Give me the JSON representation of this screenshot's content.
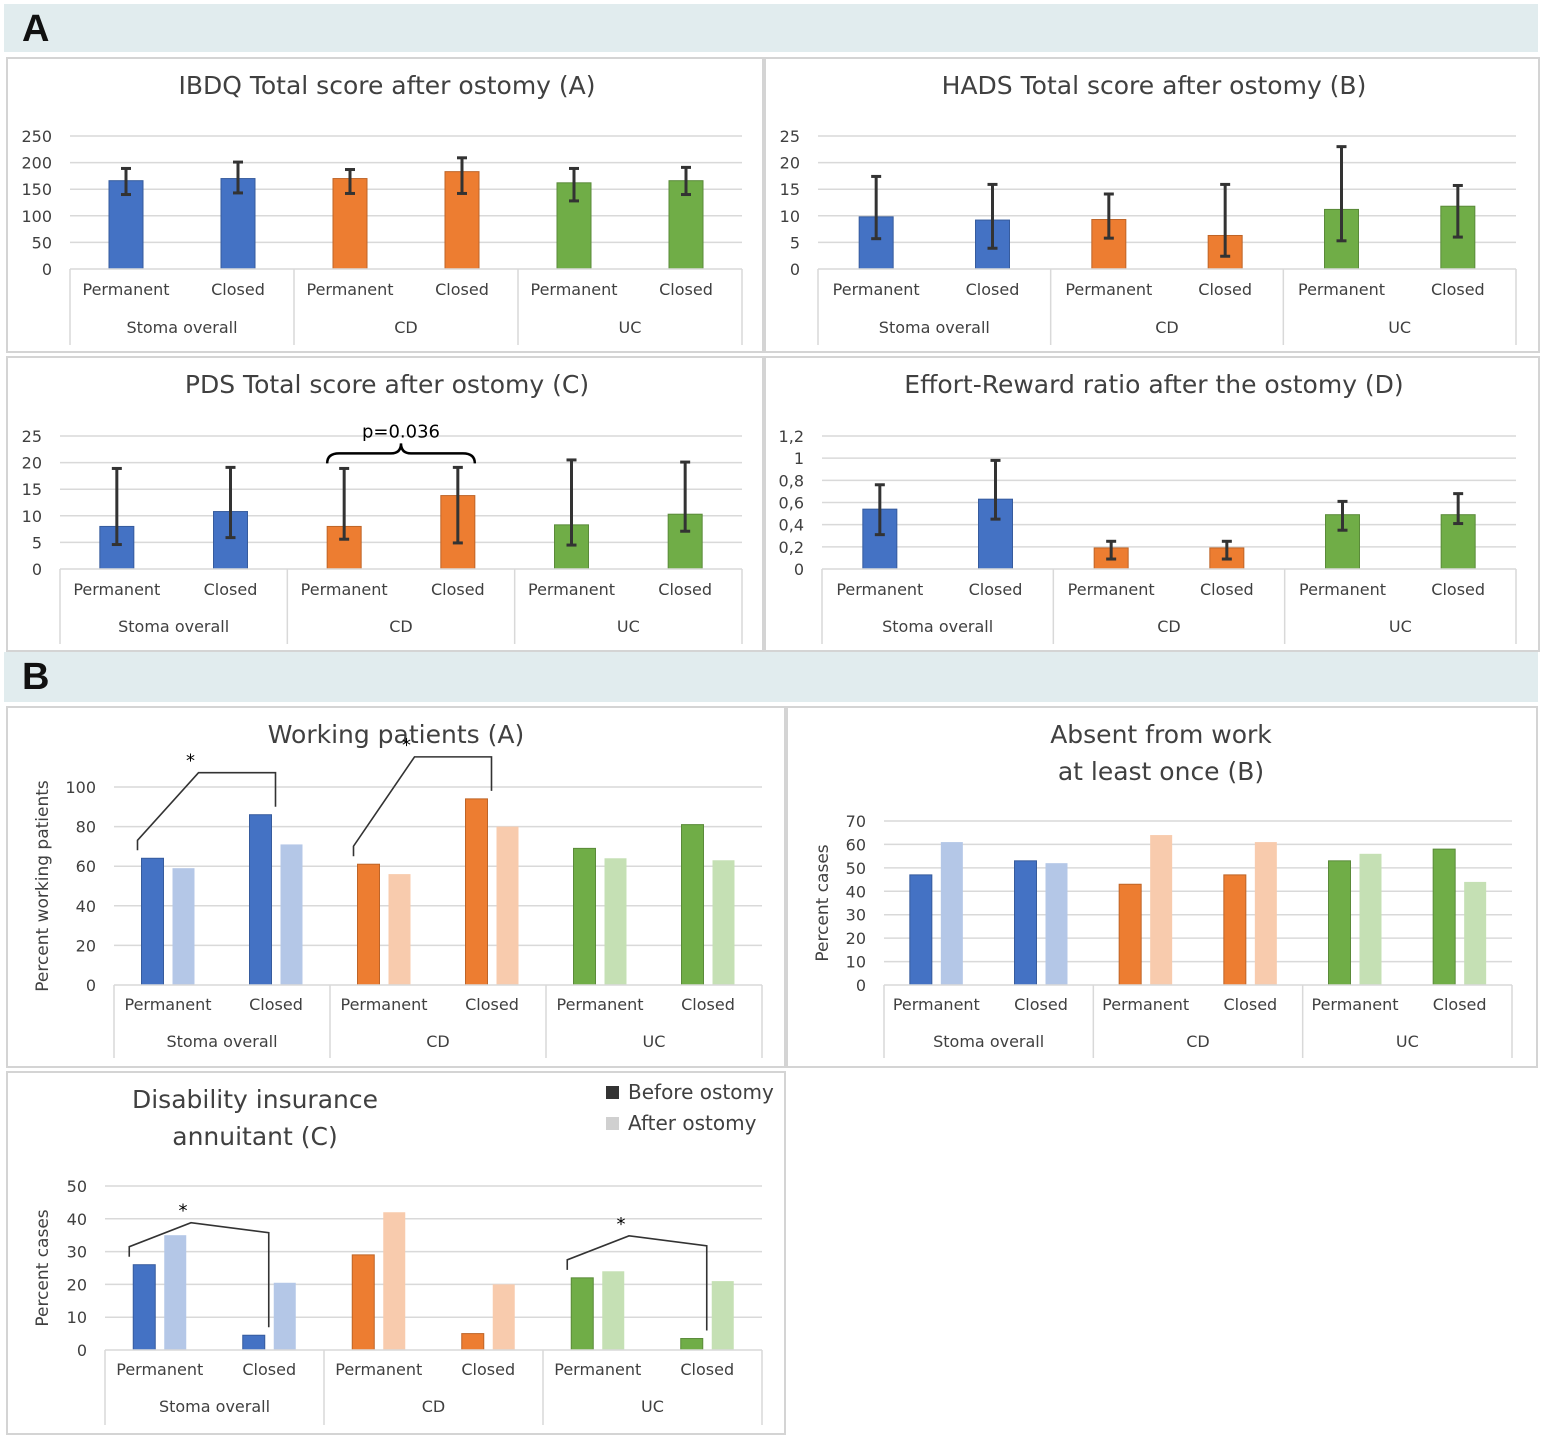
{
  "sections": [
    {
      "letter": "A"
    },
    {
      "letter": "B"
    }
  ],
  "legend": {
    "before": "Before ostomy",
    "after": "After ostomy",
    "before_color": "#333333",
    "after_color": "#d0d0d0"
  },
  "colors": {
    "blue": "#4472c4",
    "blue_light": "#b4c7e7",
    "orange": "#ed7d31",
    "orange_light": "#f8cbad",
    "green": "#70ad47",
    "green_light": "#c5e0b4",
    "error_bar": "#333333",
    "grid": "#d9d9d9"
  },
  "chart_data": [
    {
      "id": "ibdq",
      "type": "bar",
      "title": "IBDQ Total score after ostomy (A)",
      "categories": [
        "Permanent",
        "Closed",
        "Permanent",
        "Closed",
        "Permanent",
        "Closed"
      ],
      "groups": [
        "Stoma overall",
        "CD",
        "UC"
      ],
      "values": [
        166,
        170,
        170,
        183,
        162,
        166
      ],
      "error_low": [
        140,
        143,
        142,
        142,
        128,
        140
      ],
      "error_high": [
        189,
        201,
        187,
        209,
        189,
        191
      ],
      "colors": [
        "blue",
        "blue",
        "orange",
        "orange",
        "green",
        "green"
      ],
      "ylim": [
        0,
        250
      ],
      "yticks": [
        "0",
        "50",
        "100",
        "150",
        "200",
        "250"
      ],
      "grid": true
    },
    {
      "id": "hads",
      "type": "bar",
      "title": "HADS Total score after ostomy (B)",
      "categories": [
        "Permanent",
        "Closed",
        "Permanent",
        "Closed",
        "Permanent",
        "Closed"
      ],
      "groups": [
        "Stoma overall",
        "CD",
        "UC"
      ],
      "values": [
        9.8,
        9.2,
        9.3,
        6.3,
        11.2,
        11.8
      ],
      "error_low": [
        5.7,
        3.9,
        5.8,
        2.4,
        5.3,
        6.0
      ],
      "error_high": [
        17.4,
        15.9,
        14.1,
        15.9,
        23.0,
        15.7
      ],
      "colors": [
        "blue",
        "blue",
        "orange",
        "orange",
        "green",
        "green"
      ],
      "ylim": [
        0,
        25
      ],
      "yticks": [
        "0",
        "5",
        "10",
        "15",
        "20",
        "25"
      ],
      "grid": true
    },
    {
      "id": "pds",
      "type": "bar",
      "title": "PDS Total score after ostomy (C)",
      "categories": [
        "Permanent",
        "Closed",
        "Permanent",
        "Closed",
        "Permanent",
        "Closed"
      ],
      "groups": [
        "Stoma overall",
        "CD",
        "UC"
      ],
      "values": [
        8.0,
        10.8,
        8.0,
        13.8,
        8.3,
        10.3
      ],
      "error_low": [
        4.6,
        5.9,
        5.6,
        4.9,
        4.5,
        7.1
      ],
      "error_high": [
        18.9,
        19.1,
        18.9,
        19.1,
        20.5,
        20.1
      ],
      "colors": [
        "blue",
        "blue",
        "orange",
        "orange",
        "green",
        "green"
      ],
      "ylim": [
        0,
        25
      ],
      "yticks": [
        "0",
        "5",
        "10",
        "15",
        "20",
        "25"
      ],
      "grid": true,
      "annotations": [
        {
          "type": "brace",
          "from": 2,
          "to": 3,
          "text": "p=0.036"
        }
      ]
    },
    {
      "id": "eri",
      "type": "bar",
      "title": "Effort-Reward ratio after the ostomy (D)",
      "categories": [
        "Permanent",
        "Closed",
        "Permanent",
        "Closed",
        "Permanent",
        "Closed"
      ],
      "groups": [
        "Stoma overall",
        "CD",
        "UC"
      ],
      "values": [
        0.54,
        0.63,
        0.19,
        0.19,
        0.49,
        0.49
      ],
      "error_low": [
        0.31,
        0.45,
        0.09,
        0.09,
        0.35,
        0.41
      ],
      "error_high": [
        0.76,
        0.98,
        0.25,
        0.25,
        0.61,
        0.68
      ],
      "colors": [
        "blue",
        "blue",
        "orange",
        "orange",
        "green",
        "green"
      ],
      "ylim": [
        0,
        1.2
      ],
      "yticks": [
        "0",
        "0,2",
        "0,4",
        "0,6",
        "0,8",
        "1",
        "1,2"
      ],
      "grid": true
    },
    {
      "id": "working",
      "type": "bar",
      "title": "Working patients (A)",
      "ylabel": "Percent working patients",
      "categories": [
        "Permanent",
        "Closed",
        "Permanent",
        "Closed",
        "Permanent",
        "Closed"
      ],
      "groups": [
        "Stoma overall",
        "CD",
        "UC"
      ],
      "series": [
        {
          "values": [
            64,
            86,
            61,
            94,
            69,
            81
          ]
        },
        {
          "values": [
            59,
            71,
            56,
            80,
            64,
            63
          ]
        }
      ],
      "colors": [
        "blue",
        "blue",
        "orange",
        "orange",
        "green",
        "green"
      ],
      "ylim": [
        0,
        100
      ],
      "yticks": [
        "0",
        "20",
        "40",
        "60",
        "80",
        "100"
      ],
      "grid": true,
      "annotations": [
        {
          "type": "bracket",
          "from": 0,
          "to": 1,
          "text": "*"
        },
        {
          "type": "bracket",
          "from": 2,
          "to": 3,
          "text": "*"
        }
      ]
    },
    {
      "id": "absent",
      "type": "bar",
      "title": [
        "Absent from work",
        "at least once (B)"
      ],
      "ylabel": "Percent cases",
      "categories": [
        "Permanent",
        "Closed",
        "Permanent",
        "Closed",
        "Permanent",
        "Closed"
      ],
      "groups": [
        "Stoma overall",
        "CD",
        "UC"
      ],
      "series": [
        {
          "values": [
            47,
            53,
            43,
            47,
            53,
            58
          ]
        },
        {
          "values": [
            61,
            52,
            64,
            61,
            56,
            44
          ]
        }
      ],
      "colors": [
        "blue",
        "blue",
        "orange",
        "orange",
        "green",
        "green"
      ],
      "ylim": [
        0,
        70
      ],
      "yticks": [
        "0",
        "10",
        "20",
        "30",
        "40",
        "50",
        "60",
        "70"
      ],
      "grid": true
    },
    {
      "id": "disability",
      "type": "bar",
      "title": [
        "Disability insurance",
        "annuitant (C)"
      ],
      "ylabel": "Percent cases",
      "categories": [
        "Permanent",
        "Closed",
        "Permanent",
        "Closed",
        "Permanent",
        "Closed"
      ],
      "groups": [
        "Stoma overall",
        "CD",
        "UC"
      ],
      "series": [
        {
          "values": [
            26,
            4.5,
            29,
            5,
            22,
            3.5
          ]
        },
        {
          "values": [
            35,
            20.5,
            42,
            20,
            24,
            21
          ]
        }
      ],
      "colors": [
        "blue",
        "blue",
        "orange",
        "orange",
        "green",
        "green"
      ],
      "ylim": [
        0,
        50
      ],
      "yticks": [
        "0",
        "10",
        "20",
        "30",
        "40",
        "50"
      ],
      "grid": true,
      "legend": "top-right",
      "annotations": [
        {
          "type": "bracket",
          "from": 0,
          "to": 1,
          "text": "*"
        },
        {
          "type": "bracket",
          "from": 4,
          "to": 5,
          "text": "*"
        }
      ]
    }
  ]
}
